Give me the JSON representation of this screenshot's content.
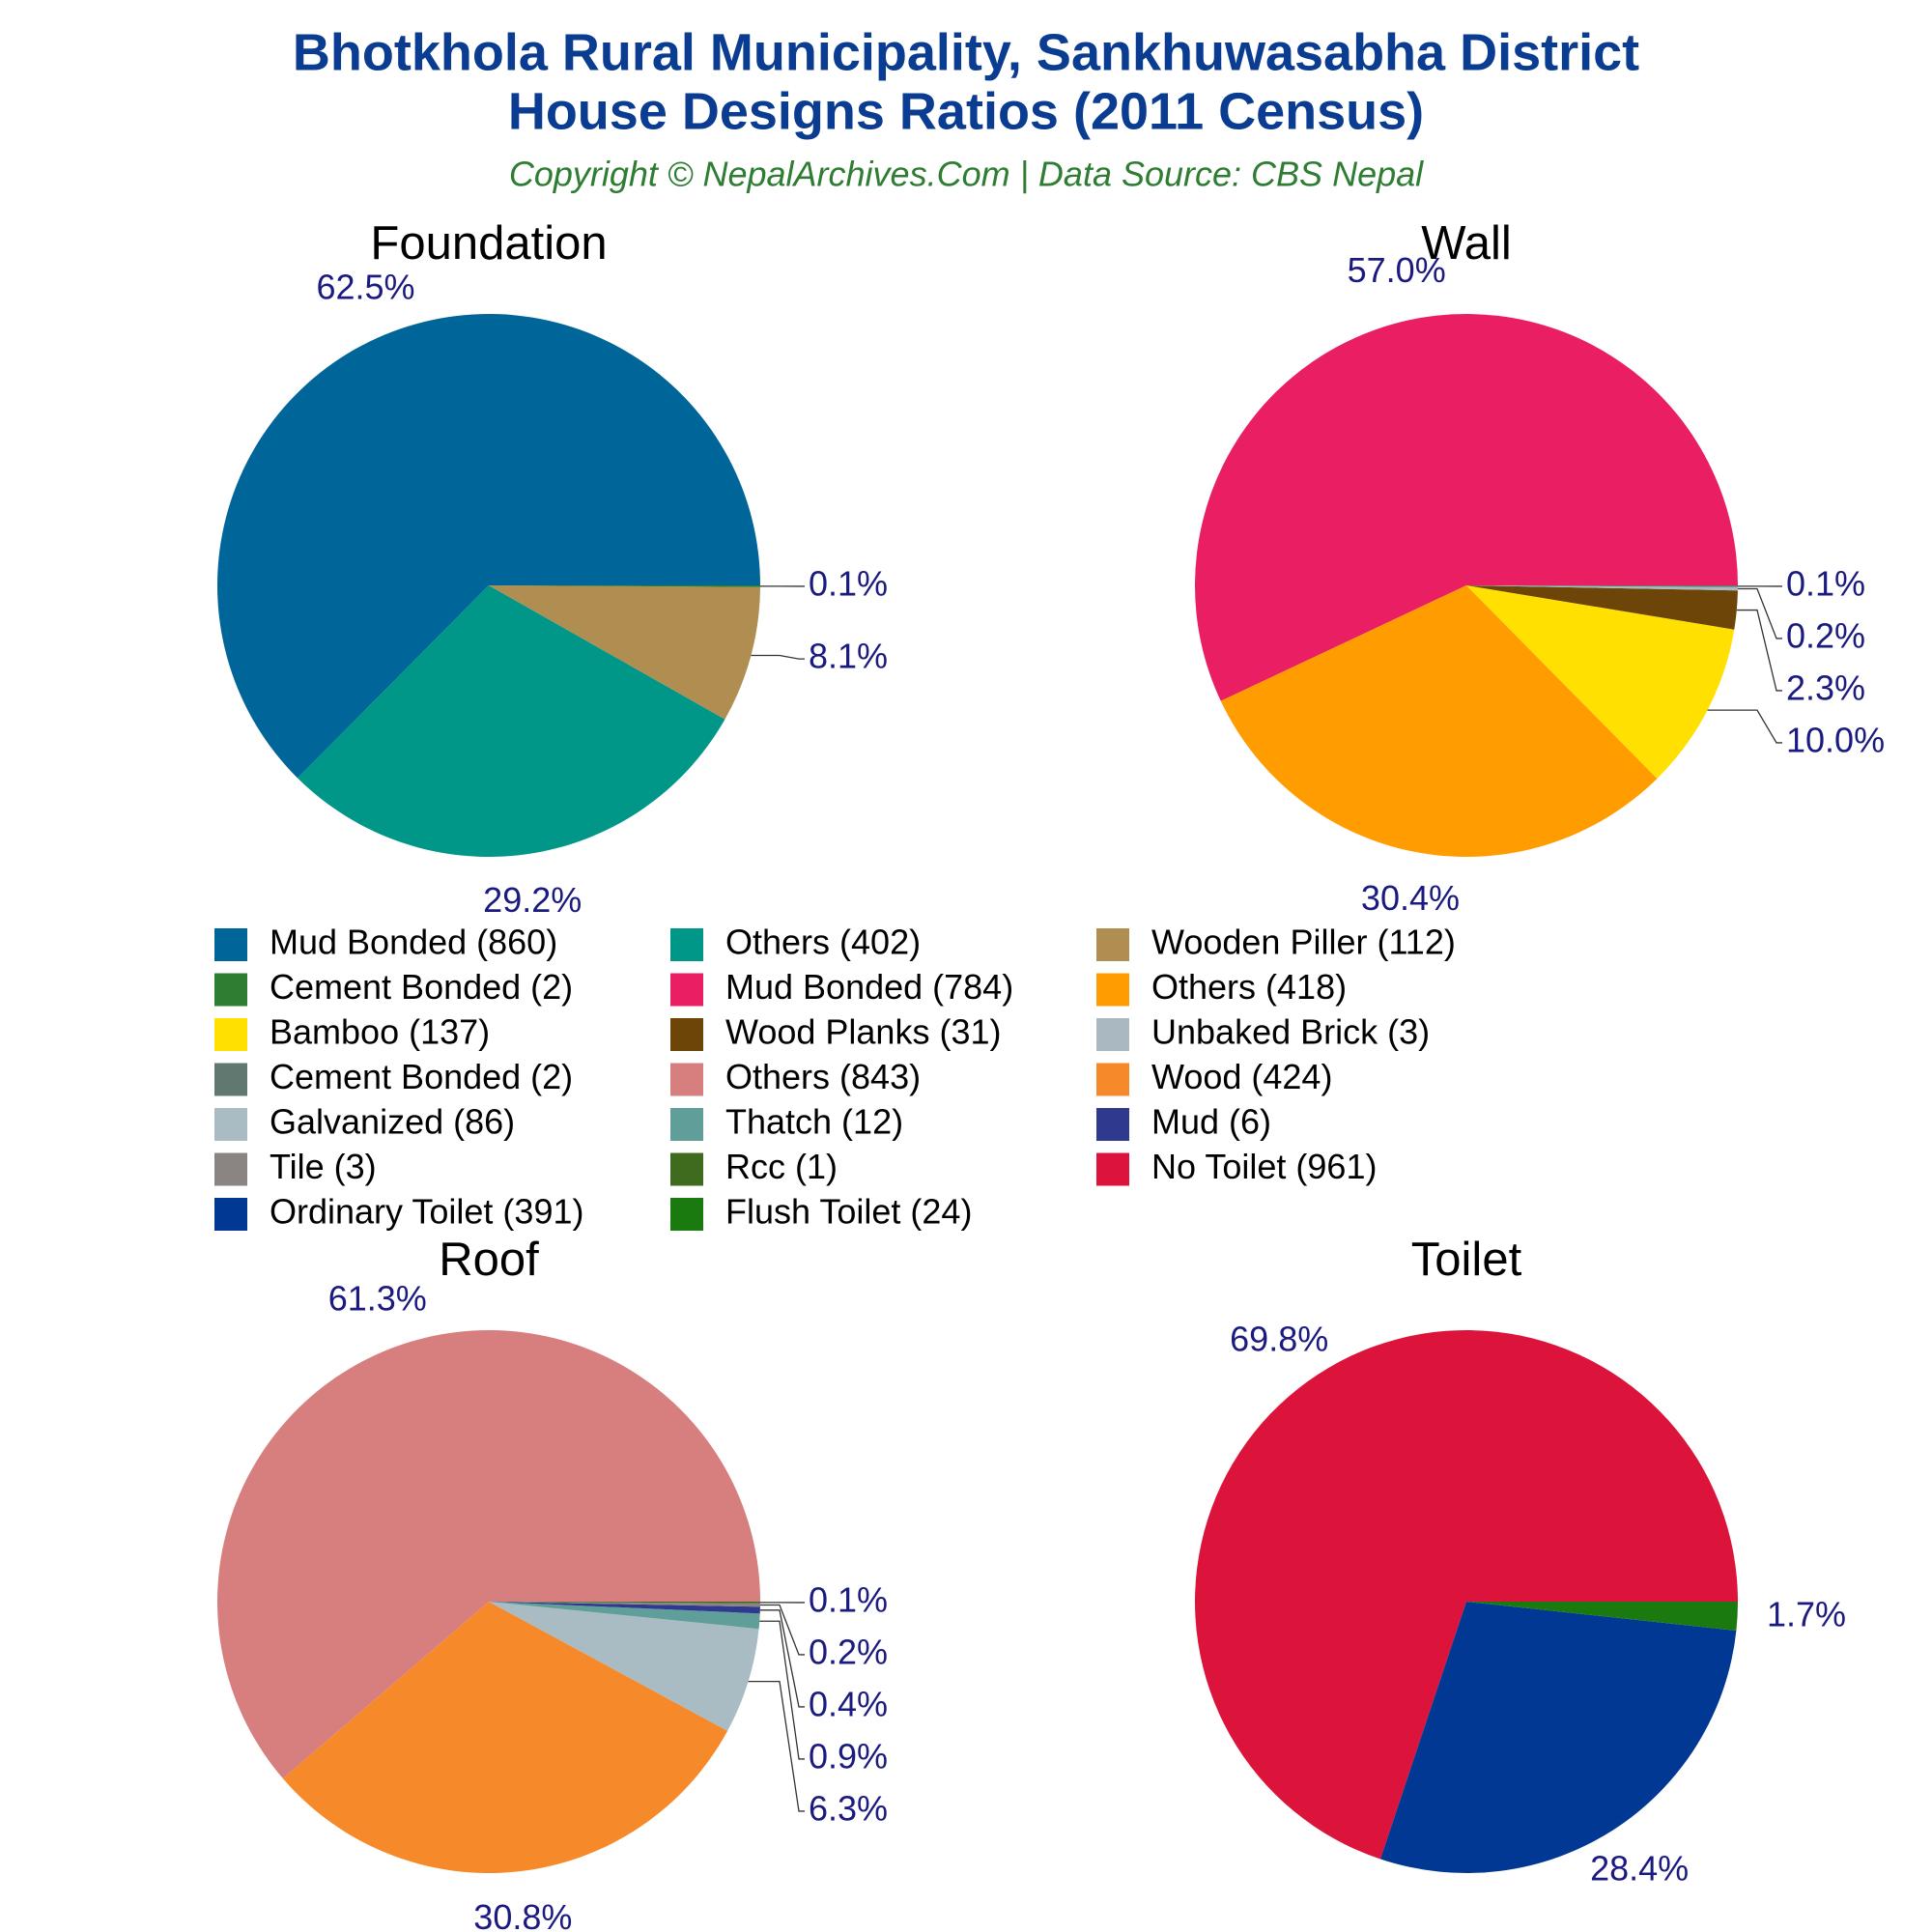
{
  "header": {
    "title": [
      "Bhotkhola Rural Municipality, Sankhuwasabha District",
      "House Designs Ratios (2011 Census)"
    ],
    "subtitle": "Copyright © NepalArchives.Com | Data Source: CBS Nepal"
  },
  "chart_data": [
    {
      "type": "pie",
      "title": "Foundation",
      "categories": [
        "Mud Bonded (860)",
        "Others (402)",
        "Wooden Piller (112)",
        "Cement Bonded (2)"
      ],
      "values": [
        62.5,
        29.2,
        8.1,
        0.1
      ],
      "value_labels": [
        "62.5%",
        "29.2%",
        "8.1%",
        "0.1%"
      ],
      "colors": [
        "#006699",
        "#009688",
        "#b08d50",
        "#2e7d32"
      ]
    },
    {
      "type": "pie",
      "title": "Wall",
      "categories": [
        "Mud Bonded (784)",
        "Others (418)",
        "Bamboo (137)",
        "Wood Planks (31)",
        "Unbaked Brick (3)",
        "Cement Bonded (2)"
      ],
      "values": [
        57.0,
        30.4,
        10.0,
        2.3,
        0.2,
        0.1
      ],
      "value_labels": [
        "57.0%",
        "30.4%",
        "10.0%",
        "2.3%",
        "0.2%",
        "0.1%"
      ],
      "colors": [
        "#e91e63",
        "#ff9c00",
        "#ffe000",
        "#6d4508",
        "#aab8c2",
        "#607870"
      ]
    },
    {
      "type": "pie",
      "title": "Roof",
      "categories": [
        "Others (843)",
        "Wood (424)",
        "Galvanized (86)",
        "Thatch (12)",
        "Mud (6)",
        "Tile (3)",
        "Rcc (1)"
      ],
      "values": [
        61.3,
        30.8,
        6.3,
        0.9,
        0.4,
        0.2,
        0.1
      ],
      "value_labels": [
        "61.3%",
        "30.8%",
        "6.3%",
        "0.9%",
        "0.4%",
        "0.2%",
        "0.1%"
      ],
      "colors": [
        "#d77f7f",
        "#f68a2a",
        "#a9bcc4",
        "#5f9e99",
        "#2f3a8f",
        "#8a8483",
        "#3e6b1e"
      ]
    },
    {
      "type": "pie",
      "title": "Toilet",
      "categories": [
        "No Toilet (961)",
        "Ordinary Toilet (391)",
        "Flush Toilet (24)"
      ],
      "values": [
        69.8,
        28.4,
        1.7
      ],
      "value_labels": [
        "69.8%",
        "28.4%",
        "1.7%"
      ],
      "colors": [
        "#dc143c",
        "#003893",
        "#1a7a10"
      ]
    }
  ]
}
